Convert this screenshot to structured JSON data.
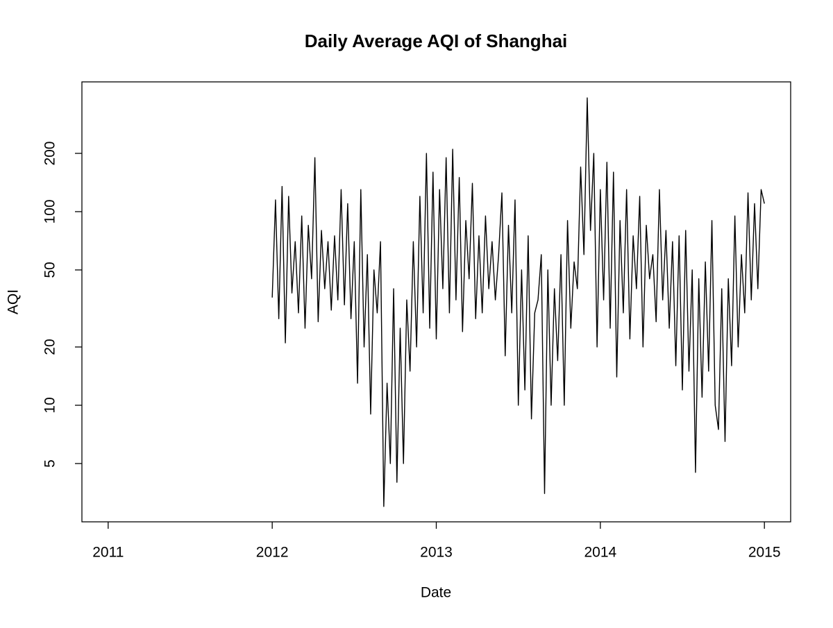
{
  "chart_data": {
    "type": "line",
    "title": "Daily Average AQI of Shanghai",
    "x_label": "Date",
    "y_label": "AQI",
    "log_y": true,
    "color": "#000000",
    "xlim": [
      2010.84,
      2015.16
    ],
    "xticks": [
      2011,
      2012,
      2013,
      2014,
      2015
    ],
    "ylim": [
      2.5,
      468
    ],
    "yticks": [
      5,
      10,
      20,
      50,
      100,
      200
    ],
    "x": [
      2012,
      2012.02,
      2012.04,
      2012.06,
      2012.08,
      2012.1,
      2012.12,
      2012.14,
      2012.16,
      2012.18,
      2012.2,
      2012.22,
      2012.24,
      2012.26,
      2012.28,
      2012.3,
      2012.32,
      2012.34,
      2012.36,
      2012.38,
      2012.4,
      2012.42,
      2012.44,
      2012.46,
      2012.48,
      2012.5,
      2012.52,
      2012.54,
      2012.56,
      2012.58,
      2012.6,
      2012.62,
      2012.64,
      2012.66,
      2012.68,
      2012.7,
      2012.72,
      2012.74,
      2012.76,
      2012.78,
      2012.8,
      2012.82,
      2012.84,
      2012.86,
      2012.88,
      2012.9,
      2012.92,
      2012.94,
      2012.96,
      2012.98,
      2013,
      2013.02,
      2013.04,
      2013.06,
      2013.08,
      2013.1,
      2013.12,
      2013.14,
      2013.16,
      2013.18,
      2013.2,
      2013.22,
      2013.24,
      2013.26,
      2013.28,
      2013.3,
      2013.32,
      2013.34,
      2013.36,
      2013.38,
      2013.4,
      2013.42,
      2013.44,
      2013.46,
      2013.48,
      2013.5,
      2013.52,
      2013.54,
      2013.56,
      2013.58,
      2013.6,
      2013.62,
      2013.64,
      2013.66,
      2013.68,
      2013.7,
      2013.72,
      2013.74,
      2013.76,
      2013.78,
      2013.8,
      2013.82,
      2013.84,
      2013.86,
      2013.88,
      2013.9,
      2013.92,
      2013.94,
      2013.96,
      2013.98,
      2014,
      2014.02,
      2014.04,
      2014.06,
      2014.08,
      2014.1,
      2014.12,
      2014.14,
      2014.16,
      2014.18,
      2014.2,
      2014.22,
      2014.24,
      2014.26,
      2014.28,
      2014.3,
      2014.32,
      2014.34,
      2014.36,
      2014.38,
      2014.4,
      2014.42,
      2014.44,
      2014.46,
      2014.48,
      2014.5,
      2014.52,
      2014.54,
      2014.56,
      2014.58,
      2014.6,
      2014.62,
      2014.64,
      2014.66,
      2014.68,
      2014.7,
      2014.72,
      2014.74,
      2014.76,
      2014.78,
      2014.8,
      2014.82,
      2014.84,
      2014.86,
      2014.88,
      2014.9,
      2014.92,
      2014.94,
      2014.96,
      2014.98,
      2015
    ],
    "values": [
      36,
      115,
      28,
      135,
      21,
      120,
      38,
      70,
      30,
      95,
      25,
      85,
      45,
      190,
      27,
      80,
      40,
      70,
      31,
      75,
      35,
      130,
      33,
      110,
      28,
      70,
      13,
      130,
      20,
      60,
      9,
      50,
      30,
      70,
      3,
      13,
      5,
      40,
      4,
      25,
      5,
      35,
      15,
      70,
      20,
      120,
      30,
      200,
      25,
      160,
      22,
      130,
      40,
      190,
      30,
      210,
      35,
      150,
      24,
      90,
      45,
      140,
      28,
      75,
      30,
      95,
      40,
      70,
      35,
      60,
      125,
      18,
      85,
      30,
      115,
      10,
      50,
      12,
      75,
      8.5,
      30,
      35,
      60,
      3.5,
      50,
      10,
      40,
      17,
      60,
      10,
      90,
      25,
      55,
      40,
      170,
      60,
      387,
      80,
      200,
      20,
      130,
      35,
      180,
      25,
      160,
      14,
      90,
      30,
      130,
      22,
      75,
      40,
      120,
      20,
      85,
      45,
      60,
      27,
      130,
      35,
      80,
      25,
      70,
      16,
      75,
      12,
      80,
      15,
      50,
      4.5,
      45,
      11,
      55,
      15,
      90,
      10,
      7.5,
      40,
      6.5,
      45,
      16,
      95,
      20,
      60,
      30,
      125,
      35,
      110,
      40,
      130,
      110
    ]
  }
}
